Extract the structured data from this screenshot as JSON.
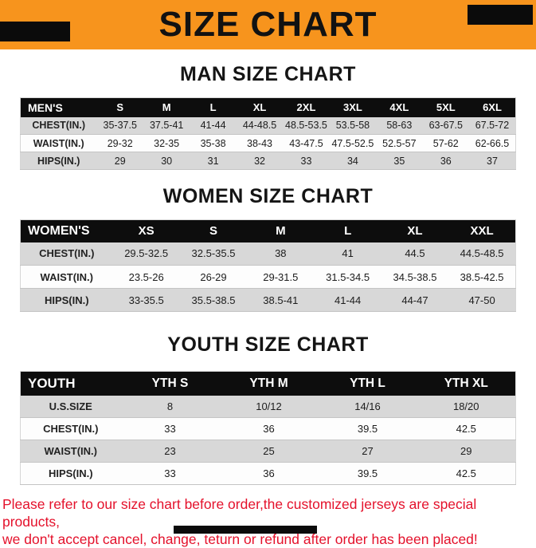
{
  "banner": {
    "title": "SIZE CHART"
  },
  "sections": [
    {
      "heading": "MAN SIZE CHART",
      "table": {
        "header": [
          "MEN'S",
          "S",
          "M",
          "L",
          "XL",
          "2XL",
          "3XL",
          "4XL",
          "5XL",
          "6XL"
        ],
        "rows": [
          [
            "CHEST(IN.)",
            "35-37.5",
            "37.5-41",
            "41-44",
            "44-48.5",
            "48.5-53.5",
            "53.5-58",
            "58-63",
            "63-67.5",
            "67.5-72"
          ],
          [
            "WAIST(IN.)",
            "29-32",
            "32-35",
            "35-38",
            "38-43",
            "43-47.5",
            "47.5-52.5",
            "52.5-57",
            "57-62",
            "62-66.5"
          ],
          [
            "HIPS(IN.)",
            "29",
            "30",
            "31",
            "32",
            "33",
            "34",
            "35",
            "36",
            "37"
          ]
        ]
      }
    },
    {
      "heading": "WOMEN SIZE CHART",
      "table": {
        "header": [
          "WOMEN'S",
          "XS",
          "S",
          "M",
          "L",
          "XL",
          "XXL"
        ],
        "rows": [
          [
            "CHEST(IN.)",
            "29.5-32.5",
            "32.5-35.5",
            "38",
            "41",
            "44.5",
            "44.5-48.5"
          ],
          [
            "WAIST(IN.)",
            "23.5-26",
            "26-29",
            "29-31.5",
            "31.5-34.5",
            "34.5-38.5",
            "38.5-42.5"
          ],
          [
            "HIPS(IN.)",
            "33-35.5",
            "35.5-38.5",
            "38.5-41",
            "41-44",
            "44-47",
            "47-50"
          ]
        ]
      }
    },
    {
      "heading": "YOUTH SIZE CHART",
      "table": {
        "header": [
          "YOUTH",
          "YTH S",
          "YTH M",
          "YTH L",
          "YTH XL"
        ],
        "rows": [
          [
            "U.S.SIZE",
            "8",
            "10/12",
            "14/16",
            "18/20"
          ],
          [
            "CHEST(IN.)",
            "33",
            "36",
            "39.5",
            "42.5"
          ],
          [
            "WAIST(IN.)",
            "23",
            "25",
            "27",
            "29"
          ],
          [
            "HIPS(IN.)",
            "33",
            "36",
            "39.5",
            "42.5"
          ]
        ]
      }
    }
  ],
  "footer": {
    "lines": [
      "Please refer to our size chart before order,the customized jerseys are special products,",
      "we don't accept cancel, change, teturn or refund after order has been placed!"
    ]
  },
  "colors": {
    "banner_bg": "#F7941D",
    "table_header_bg": "#0D0D0D",
    "row_alt_gray": "#D8D8D8",
    "footer_text": "#E4112B"
  }
}
